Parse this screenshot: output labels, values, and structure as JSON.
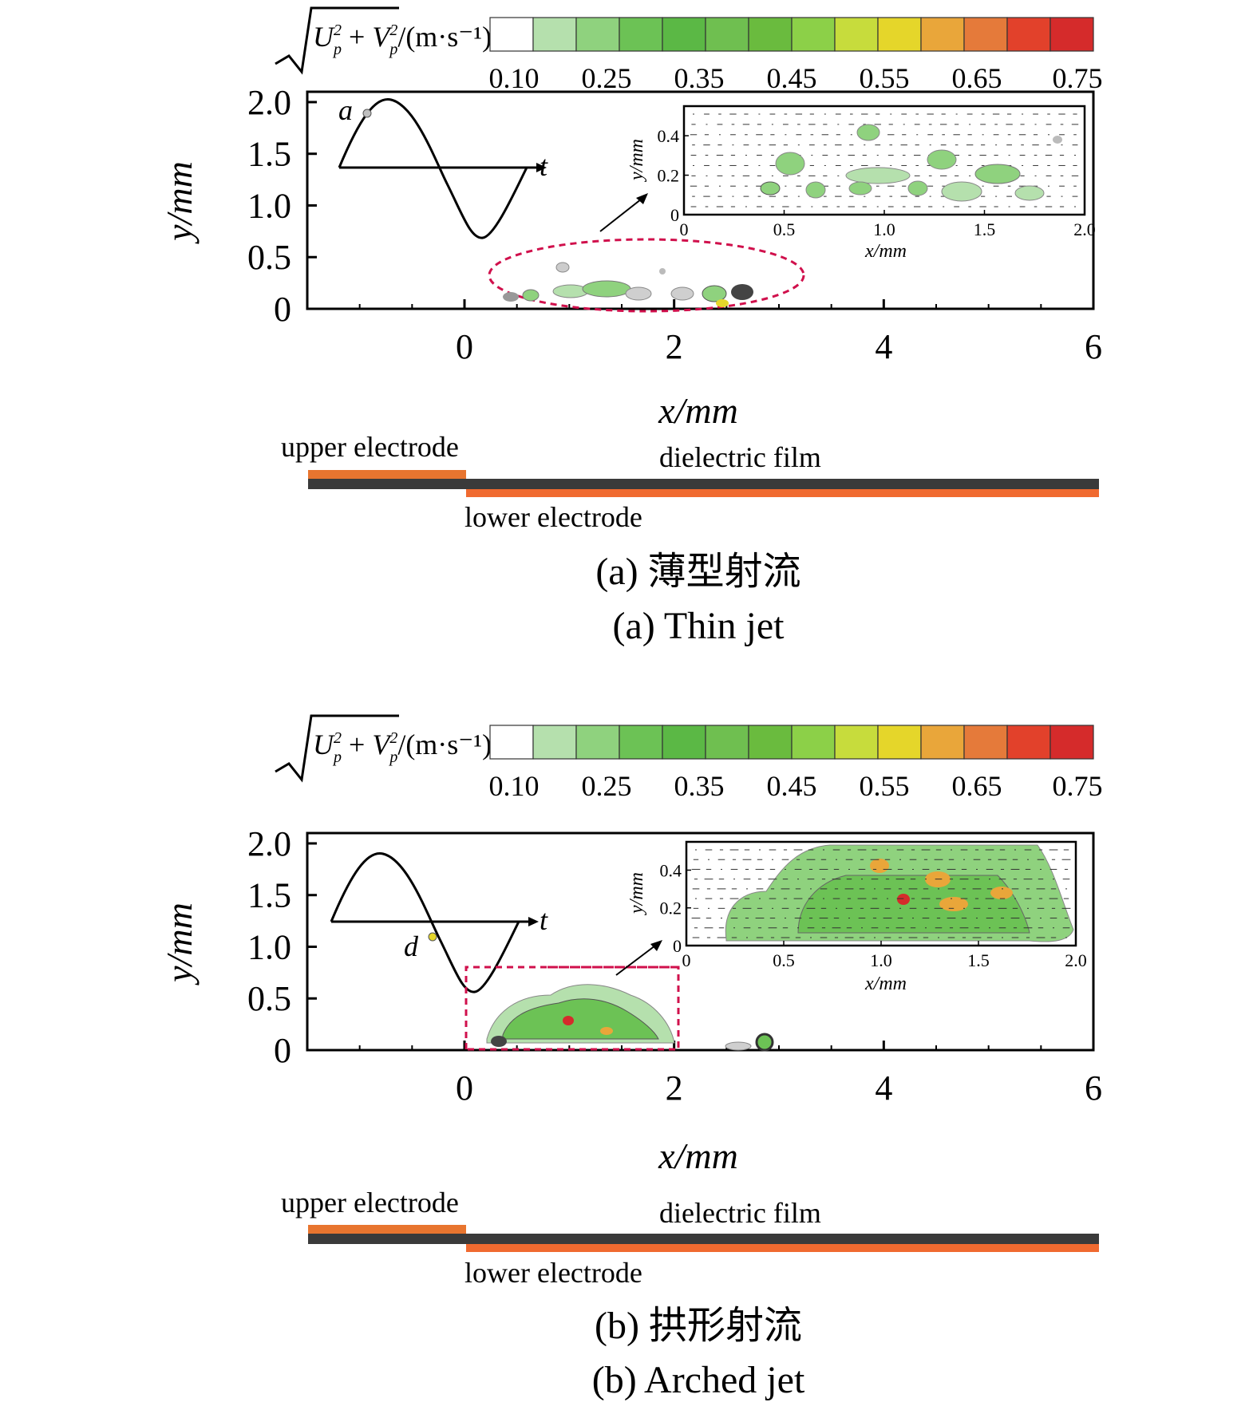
{
  "colorbar": {
    "label_main": "U",
    "label_plus": " + ",
    "label_v": "V",
    "label_sup": "2",
    "label_sub": "p",
    "label_unit": "/(m·s⁻¹)",
    "ticks": [
      "0.10",
      "0.25",
      "0.35",
      "0.45",
      "0.55",
      "0.65",
      "0.75"
    ],
    "colors": [
      "#ffffff",
      "#b5e0ad",
      "#8fd27e",
      "#6cc255",
      "#5bb845",
      "#6fbf50",
      "#6abb3e",
      "#8cd048",
      "#c7dc3c",
      "#e5d62a",
      "#e9a63a",
      "#e57a3a",
      "#e2412b",
      "#d52b2b"
    ]
  },
  "electrodes": {
    "upper": "upper electrode",
    "film": "dielectric film",
    "lower": "lower electrode",
    "upper_color": "#e8752f",
    "film_color": "#3a3a3a",
    "lower_color": "#f06a30"
  },
  "chart_data": [
    {
      "type": "heatmap",
      "panel": "a",
      "caption_cn": "(a) 薄型射流",
      "caption_en": "(a) Thin jet",
      "xlabel": "x/mm",
      "ylabel": "y/mm",
      "xlim": [
        -1.5,
        6
      ],
      "ylim": [
        0,
        2.1
      ],
      "xticks": [
        0,
        2,
        4,
        6
      ],
      "yticks": [
        "0",
        "0.5",
        "1.0",
        "1.5",
        "2.0"
      ],
      "yticks_values": [
        0,
        0.5,
        1.0,
        1.5,
        2.0
      ],
      "phase_marker": "a",
      "waveform_time_label": "t",
      "highlight": "dashed ellipse around x≈0.2–3.1 mm, y≈0–0.6 mm",
      "inset": {
        "xlabel": "x/mm",
        "ylabel": "y/mm",
        "xlim": [
          0,
          2.0
        ],
        "ylim": [
          0,
          0.55
        ],
        "xticks": [
          "0",
          "0.5",
          "1.0",
          "1.5",
          "2.0"
        ],
        "xticks_values": [
          0,
          0.5,
          1.0,
          1.5,
          2.0
        ],
        "yticks": [
          "0",
          "0.2",
          "0.4"
        ],
        "yticks_values": [
          0,
          0.2,
          0.4
        ]
      }
    },
    {
      "type": "heatmap",
      "panel": "b",
      "caption_cn": "(b) 拱形射流",
      "caption_en": "(b) Arched jet",
      "xlabel": "x/mm",
      "ylabel": "y/mm",
      "xlim": [
        -1.5,
        6
      ],
      "ylim": [
        0,
        2.1
      ],
      "xticks": [
        0,
        2,
        4,
        6
      ],
      "yticks": [
        "0",
        "0.5",
        "1.0",
        "1.5",
        "2.0"
      ],
      "yticks_values": [
        0,
        0.5,
        1.0,
        1.5,
        2.0
      ],
      "phase_marker": "d",
      "waveform_time_label": "t",
      "highlight": "dashed rectangle x≈0–2.05 mm, y≈0–0.95 mm",
      "inset": {
        "xlabel": "x/mm",
        "ylabel": "y/mm",
        "xlim": [
          0,
          2.0
        ],
        "ylim": [
          0,
          0.55
        ],
        "xticks": [
          "0",
          "0.5",
          "1.0",
          "1.5",
          "2.0"
        ],
        "xticks_values": [
          0,
          0.5,
          1.0,
          1.5,
          2.0
        ],
        "yticks": [
          "0",
          "0.2",
          "0.4"
        ],
        "yticks_values": [
          0,
          0.2,
          0.4
        ]
      }
    }
  ]
}
